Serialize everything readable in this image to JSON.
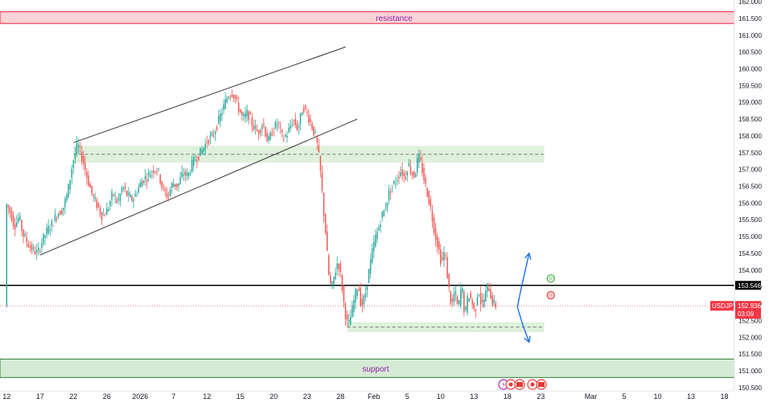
{
  "chart_data": {
    "type": "candlestick",
    "symbol": "USDJPY",
    "ylim": [
      150.4,
      162.05
    ],
    "y_ticks": [
      162.0,
      161.5,
      161.0,
      160.5,
      160.0,
      159.5,
      159.0,
      158.5,
      158.0,
      157.5,
      157.0,
      156.5,
      156.0,
      155.5,
      155.0,
      154.5,
      154.0,
      153.5,
      153.0,
      152.5,
      152.0,
      151.5,
      151.0,
      150.5
    ],
    "y_tick_labels": [
      "162.000",
      "161.500",
      "161.000",
      "160.500",
      "160.000",
      "159.500",
      "159.000",
      "158.500",
      "158.000",
      "157.500",
      "157.000",
      "156.500",
      "156.000",
      "155.500",
      "155.000",
      "154.500",
      "154.000",
      "153.500",
      "153.000",
      "152.500",
      "152.000",
      "151.500",
      "151.000",
      "150.500"
    ],
    "x_ticks": [
      {
        "label": "12",
        "bar": 0
      },
      {
        "label": "17",
        "bar": 20
      },
      {
        "label": "22",
        "bar": 40
      },
      {
        "label": "26",
        "bar": 60
      },
      {
        "label": "2026",
        "bar": 80
      },
      {
        "label": "7",
        "bar": 100
      },
      {
        "label": "12",
        "bar": 120
      },
      {
        "label": "15",
        "bar": 140
      },
      {
        "label": "20",
        "bar": 160
      },
      {
        "label": "23",
        "bar": 180
      },
      {
        "label": "28",
        "bar": 200
      },
      {
        "label": "Feb",
        "bar": 220
      },
      {
        "label": "5",
        "bar": 240
      },
      {
        "label": "10",
        "bar": 260
      },
      {
        "label": "13",
        "bar": 280
      },
      {
        "label": "18",
        "bar": 300
      },
      {
        "label": "23",
        "bar": 320
      },
      {
        "label": "Mar",
        "bar": 350
      },
      {
        "label": "5",
        "bar": 370
      },
      {
        "label": "10",
        "bar": 390
      },
      {
        "label": "13",
        "bar": 410
      },
      {
        "label": "18",
        "bar": 430
      }
    ],
    "x_domain": [
      -4,
      436
    ],
    "price_path": [
      [
        0,
        156.0
      ],
      [
        3,
        155.7
      ],
      [
        5,
        155.3
      ],
      [
        8,
        155.6
      ],
      [
        10,
        155.1
      ],
      [
        13,
        154.8
      ],
      [
        16,
        154.6
      ],
      [
        19,
        154.5
      ],
      [
        22,
        154.9
      ],
      [
        25,
        155.2
      ],
      [
        28,
        155.4
      ],
      [
        31,
        155.7
      ],
      [
        34,
        155.8
      ],
      [
        37,
        156.3
      ],
      [
        40,
        157.2
      ],
      [
        43,
        157.75
      ],
      [
        46,
        157.3
      ],
      [
        49,
        156.7
      ],
      [
        52,
        156.2
      ],
      [
        55,
        155.9
      ],
      [
        58,
        155.6
      ],
      [
        61,
        155.8
      ],
      [
        64,
        156.3
      ],
      [
        67,
        156.0
      ],
      [
        70,
        156.5
      ],
      [
        73,
        156.2
      ],
      [
        76,
        156.1
      ],
      [
        79,
        156.4
      ],
      [
        82,
        156.7
      ],
      [
        85,
        156.8
      ],
      [
        88,
        157.0
      ],
      [
        91,
        157.0
      ],
      [
        94,
        156.4
      ],
      [
        97,
        156.2
      ],
      [
        100,
        156.6
      ],
      [
        103,
        156.5
      ],
      [
        106,
        156.9
      ],
      [
        109,
        156.8
      ],
      [
        112,
        157.2
      ],
      [
        115,
        157.4
      ],
      [
        118,
        157.6
      ],
      [
        121,
        157.9
      ],
      [
        124,
        158.0
      ],
      [
        127,
        158.4
      ],
      [
        130,
        158.8
      ],
      [
        133,
        159.2
      ],
      [
        136,
        159.3
      ],
      [
        139,
        158.9
      ],
      [
        142,
        158.5
      ],
      [
        145,
        158.7
      ],
      [
        148,
        158.3
      ],
      [
        151,
        158.1
      ],
      [
        154,
        158.4
      ],
      [
        157,
        157.8
      ],
      [
        160,
        158.2
      ],
      [
        163,
        158.4
      ],
      [
        166,
        157.9
      ],
      [
        169,
        158.1
      ],
      [
        172,
        158.5
      ],
      [
        175,
        158.2
      ],
      [
        178,
        158.9
      ],
      [
        181,
        158.6
      ],
      [
        184,
        158.2
      ],
      [
        186,
        157.9
      ],
      [
        188,
        157.2
      ],
      [
        190,
        156.0
      ],
      [
        191,
        155.4
      ],
      [
        192,
        154.9
      ],
      [
        193,
        154.0
      ],
      [
        195,
        153.4
      ],
      [
        197,
        153.9
      ],
      [
        199,
        154.3
      ],
      [
        201,
        153.7
      ],
      [
        203,
        152.8
      ],
      [
        205,
        152.3
      ],
      [
        207,
        152.7
      ],
      [
        209,
        153.2
      ],
      [
        211,
        153.6
      ],
      [
        213,
        152.9
      ],
      [
        215,
        153.2
      ],
      [
        217,
        153.8
      ],
      [
        219,
        154.4
      ],
      [
        221,
        154.9
      ],
      [
        223,
        155.2
      ],
      [
        225,
        155.6
      ],
      [
        227,
        155.8
      ],
      [
        229,
        156.2
      ],
      [
        231,
        156.5
      ],
      [
        233,
        156.6
      ],
      [
        235,
        156.8
      ],
      [
        237,
        157.0
      ],
      [
        239,
        156.7
      ],
      [
        241,
        157.2
      ],
      [
        243,
        156.9
      ],
      [
        245,
        156.8
      ],
      [
        247,
        157.4
      ],
      [
        249,
        157.1
      ],
      [
        251,
        156.6
      ],
      [
        253,
        156.2
      ],
      [
        255,
        155.7
      ],
      [
        257,
        155.1
      ],
      [
        259,
        154.7
      ],
      [
        261,
        154.2
      ],
      [
        263,
        154.6
      ],
      [
        265,
        153.6
      ],
      [
        267,
        152.9
      ],
      [
        269,
        153.4
      ],
      [
        271,
        152.8
      ],
      [
        273,
        153.6
      ],
      [
        275,
        152.6
      ],
      [
        277,
        153.3
      ],
      [
        279,
        153.1
      ],
      [
        281,
        152.7
      ],
      [
        283,
        153.5
      ],
      [
        285,
        152.9
      ],
      [
        287,
        153.2
      ],
      [
        289,
        153.6
      ],
      [
        291,
        153.1
      ],
      [
        293,
        152.94
      ]
    ],
    "current_price": 152.936,
    "current_label": "152.936",
    "countdown": "03:09",
    "horizontal_line": 153.546,
    "horizontal_line_label": "153.546",
    "resistance_zone": {
      "label": "resistance",
      "top": 161.7,
      "bottom": 161.35
    },
    "support_zone": {
      "label": "support",
      "top": 151.35,
      "bottom": 150.8
    },
    "boxes": [
      {
        "bar_from": 40,
        "bar_to": 322,
        "top": 157.7,
        "bottom": 157.2,
        "mid": 157.45
      },
      {
        "bar_from": 204,
        "bar_to": 322,
        "top": 152.45,
        "bottom": 152.15,
        "mid": 152.3
      }
    ],
    "channel": [
      {
        "bar_from": 40,
        "y_from": 157.8,
        "bar_to": 203,
        "y_to": 160.65
      },
      {
        "bar_from": 20,
        "y_from": 154.45,
        "bar_to": 210,
        "y_to": 158.5
      }
    ],
    "arrows": [
      {
        "path": [
          [
            306,
            152.9
          ],
          [
            308,
            153.4
          ],
          [
            313,
            154.5
          ]
        ],
        "color": "#1e6fe8"
      },
      {
        "path": [
          [
            306,
            152.9
          ],
          [
            309,
            152.4
          ],
          [
            313,
            151.85
          ]
        ],
        "color": "#1e6fe8"
      }
    ],
    "markers": [
      {
        "bar": 326,
        "price": 153.75,
        "color": "#4caf50"
      },
      {
        "bar": 326,
        "price": 153.25,
        "color": "#e53935"
      }
    ],
    "colors": {
      "up": "#26a69a",
      "down": "#ef5350",
      "resistance_fill": "#fcd3d6",
      "resistance_border": "#e91e43",
      "support_fill": "#d6ebd5",
      "support_border": "#2e7d32",
      "box_fill": "#dff0dc",
      "price_tag": "#f23645",
      "level_tag": "#000000"
    }
  }
}
